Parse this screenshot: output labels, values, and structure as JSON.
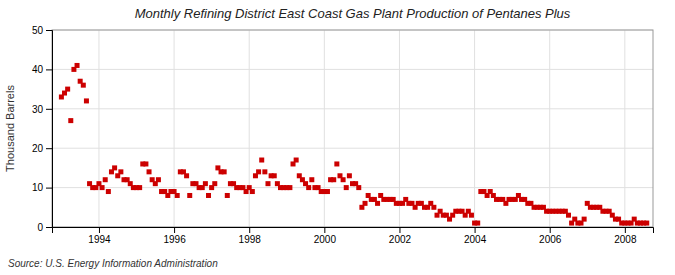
{
  "chart_data": {
    "type": "scatter",
    "title": "Monthly Refining District East Coast Gas Plant Production of Pentanes Plus",
    "ylabel": "Thousand Barrels",
    "annotations": [
      "Source: U.S. Energy Information Administration"
    ],
    "color": "#CC0000",
    "marker": "square",
    "grid": true,
    "xlim": [
      1992.75,
      2008.75
    ],
    "xticks": [
      1994,
      1996,
      1998,
      2000,
      2002,
      2004,
      2006,
      2008
    ],
    "ylim": [
      0,
      50
    ],
    "yticks": [
      0,
      10,
      20,
      30,
      40,
      50
    ],
    "x": [
      1993,
      1993.0833333333333,
      1993.1666666666667,
      1993.25,
      1993.3333333333333,
      1993.4166666666667,
      1993.5,
      1993.5833333333333,
      1993.6666666666667,
      1993.75,
      1993.8333333333333,
      1993.9166666666667,
      1994,
      1994.0833333333333,
      1994.1666666666667,
      1994.25,
      1994.3333333333333,
      1994.4166666666667,
      1994.5,
      1994.5833333333333,
      1994.6666666666667,
      1994.75,
      1994.8333333333333,
      1994.9166666666667,
      1995,
      1995.0833333333333,
      1995.1666666666667,
      1995.25,
      1995.3333333333333,
      1995.4166666666667,
      1995.5,
      1995.5833333333333,
      1995.6666666666667,
      1995.75,
      1995.8333333333333,
      1995.9166666666667,
      1996,
      1996.0833333333333,
      1996.1666666666667,
      1996.25,
      1996.3333333333333,
      1996.4166666666667,
      1996.5,
      1996.5833333333333,
      1996.6666666666667,
      1996.75,
      1996.8333333333333,
      1996.9166666666667,
      1997,
      1997.0833333333333,
      1997.1666666666667,
      1997.25,
      1997.3333333333333,
      1997.4166666666667,
      1997.5,
      1997.5833333333333,
      1997.6666666666667,
      1997.75,
      1997.8333333333333,
      1997.9166666666667,
      1998,
      1998.0833333333333,
      1998.1666666666667,
      1998.25,
      1998.3333333333333,
      1998.4166666666667,
      1998.5,
      1998.5833333333333,
      1998.6666666666667,
      1998.75,
      1998.8333333333333,
      1998.9166666666667,
      1999,
      1999.0833333333333,
      1999.1666666666667,
      1999.25,
      1999.3333333333333,
      1999.4166666666667,
      1999.5,
      1999.5833333333333,
      1999.6666666666667,
      1999.75,
      1999.8333333333333,
      1999.9166666666667,
      2000,
      2000.0833333333333,
      2000.1666666666667,
      2000.25,
      2000.3333333333333,
      2000.4166666666667,
      2000.5,
      2000.5833333333333,
      2000.6666666666667,
      2000.75,
      2000.8333333333333,
      2000.9166666666667,
      2001,
      2001.0833333333333,
      2001.1666666666667,
      2001.25,
      2001.3333333333333,
      2001.4166666666667,
      2001.5,
      2001.5833333333333,
      2001.6666666666667,
      2001.75,
      2001.8333333333333,
      2001.9166666666667,
      2002,
      2002.0833333333333,
      2002.1666666666667,
      2002.25,
      2002.3333333333333,
      2002.4166666666667,
      2002.5,
      2002.5833333333333,
      2002.6666666666667,
      2002.75,
      2002.8333333333333,
      2002.9166666666667,
      2003,
      2003.0833333333333,
      2003.1666666666667,
      2003.25,
      2003.3333333333333,
      2003.4166666666667,
      2003.5,
      2003.5833333333333,
      2003.6666666666667,
      2003.75,
      2003.8333333333333,
      2003.9166666666667,
      2004,
      2004.0833333333333,
      2004.1666666666667,
      2004.25,
      2004.3333333333333,
      2004.4166666666667,
      2004.5,
      2004.5833333333333,
      2004.6666666666667,
      2004.75,
      2004.8333333333333,
      2004.9166666666667,
      2005,
      2005.0833333333333,
      2005.1666666666667,
      2005.25,
      2005.3333333333333,
      2005.4166666666667,
      2005.5,
      2005.5833333333333,
      2005.6666666666667,
      2005.75,
      2005.8333333333333,
      2005.9166666666667,
      2006,
      2006.0833333333333,
      2006.1666666666667,
      2006.25,
      2006.3333333333333,
      2006.4166666666667,
      2006.5,
      2006.5833333333333,
      2006.6666666666667,
      2006.75,
      2006.8333333333333,
      2006.9166666666667,
      2007,
      2007.0833333333333,
      2007.1666666666667,
      2007.25,
      2007.3333333333333,
      2007.4166666666667,
      2007.5,
      2007.5833333333333,
      2007.6666666666667,
      2007.75,
      2007.8333333333333,
      2007.9166666666667,
      2008,
      2008.0833333333333,
      2008.1666666666667,
      2008.25,
      2008.3333333333333,
      2008.4166666666667,
      2008.5,
      2008.5833333333333
    ],
    "values": [
      33,
      34,
      35,
      27,
      40,
      41,
      37,
      36,
      32,
      11,
      10,
      10,
      11,
      10,
      12,
      9,
      14,
      15,
      13,
      14,
      12,
      12,
      11,
      10,
      10,
      10,
      16,
      16,
      14,
      12,
      11,
      12,
      9,
      9,
      8,
      9,
      9,
      8,
      14,
      14,
      13,
      8,
      11,
      11,
      10,
      10,
      11,
      8,
      10,
      11,
      15,
      14,
      14,
      8,
      11,
      11,
      10,
      10,
      10,
      9,
      10,
      9,
      13,
      14,
      17,
      14,
      11,
      13,
      13,
      11,
      10,
      10,
      10,
      10,
      16,
      17,
      13,
      12,
      11,
      10,
      12,
      10,
      10,
      9,
      9,
      9,
      12,
      12,
      16,
      13,
      12,
      10,
      13,
      11,
      11,
      10,
      5,
      6,
      8,
      7,
      7,
      6,
      8,
      7,
      7,
      7,
      7,
      6,
      6,
      6,
      7,
      6,
      6,
      5,
      6,
      6,
      5,
      5,
      6,
      5,
      3,
      4,
      3,
      3,
      2,
      3,
      4,
      4,
      4,
      3,
      4,
      3,
      1,
      1,
      9,
      9,
      8,
      9,
      8,
      7,
      7,
      7,
      6,
      7,
      7,
      7,
      8,
      7,
      7,
      6,
      6,
      5,
      5,
      5,
      5,
      4,
      4,
      4,
      4,
      4,
      4,
      4,
      3,
      1,
      2,
      1,
      1,
      2,
      6,
      5,
      5,
      5,
      5,
      4,
      4,
      4,
      3,
      2,
      2,
      1,
      1,
      1,
      1,
      2,
      1,
      1,
      1,
      1
    ]
  }
}
